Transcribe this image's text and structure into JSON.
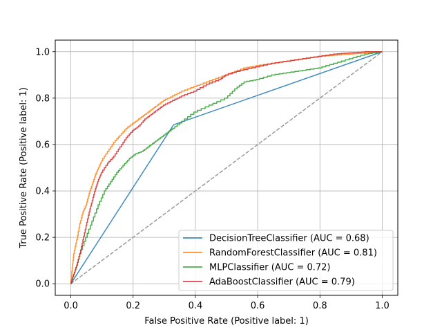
{
  "chart_data": {
    "type": "line",
    "title": "",
    "xlabel": "False Positive Rate (Positive label: 1)",
    "ylabel": "True Positive Rate (Positive label: 1)",
    "xlim": [
      -0.05,
      1.05
    ],
    "ylim": [
      -0.05,
      1.05
    ],
    "xticks": [
      0.0,
      0.2,
      0.4,
      0.6,
      0.8,
      1.0
    ],
    "yticks": [
      0.0,
      0.2,
      0.4,
      0.6,
      0.8,
      1.0
    ],
    "xtick_labels": [
      "0.0",
      "0.2",
      "0.4",
      "0.6",
      "0.8",
      "1.0"
    ],
    "ytick_labels": [
      "0.0",
      "0.2",
      "0.4",
      "0.6",
      "0.8",
      "1.0"
    ],
    "grid": true,
    "legend_position": "lower-right",
    "series": [
      {
        "name": "DecisionTreeClassifier (AUC = 0.68)",
        "color": "#1f77b4",
        "x": [
          0.0,
          0.33,
          1.0
        ],
        "y": [
          0.0,
          0.685,
          1.0
        ]
      },
      {
        "name": "RandomForestClassifier (AUC = 0.81)",
        "color": "#ff7f0e",
        "x": [
          0.0,
          0.005,
          0.01,
          0.02,
          0.03,
          0.04,
          0.05,
          0.06,
          0.07,
          0.08,
          0.09,
          0.1,
          0.12,
          0.14,
          0.16,
          0.18,
          0.2,
          0.22,
          0.24,
          0.26,
          0.28,
          0.3,
          0.33,
          0.36,
          0.4,
          0.44,
          0.48,
          0.52,
          0.56,
          0.6,
          0.65,
          0.7,
          0.75,
          0.8,
          0.85,
          0.9,
          0.95,
          1.0
        ],
        "y": [
          0.0,
          0.07,
          0.13,
          0.19,
          0.26,
          0.31,
          0.34,
          0.39,
          0.43,
          0.47,
          0.5,
          0.53,
          0.57,
          0.61,
          0.64,
          0.67,
          0.69,
          0.71,
          0.73,
          0.75,
          0.77,
          0.79,
          0.81,
          0.83,
          0.85,
          0.87,
          0.89,
          0.91,
          0.93,
          0.94,
          0.95,
          0.96,
          0.97,
          0.98,
          0.985,
          0.99,
          0.995,
          1.0
        ]
      },
      {
        "name": "MLPClassifier (AUC = 0.72)",
        "color": "#2ca02c",
        "x": [
          0.0,
          0.01,
          0.02,
          0.03,
          0.05,
          0.07,
          0.09,
          0.11,
          0.13,
          0.15,
          0.17,
          0.19,
          0.21,
          0.23,
          0.25,
          0.27,
          0.29,
          0.31,
          0.33,
          0.36,
          0.4,
          0.45,
          0.5,
          0.53,
          0.56,
          0.6,
          0.65,
          0.7,
          0.75,
          0.8,
          0.85,
          0.9,
          0.95,
          1.0
        ],
        "y": [
          0.0,
          0.04,
          0.08,
          0.13,
          0.2,
          0.27,
          0.34,
          0.4,
          0.44,
          0.48,
          0.51,
          0.54,
          0.56,
          0.57,
          0.59,
          0.61,
          0.63,
          0.65,
          0.67,
          0.7,
          0.74,
          0.77,
          0.8,
          0.84,
          0.87,
          0.88,
          0.9,
          0.91,
          0.92,
          0.93,
          0.95,
          0.97,
          0.99,
          1.0
        ]
      },
      {
        "name": "AdaBoostClassifier (AUC = 0.79)",
        "color": "#d62728",
        "x": [
          0.0,
          0.01,
          0.02,
          0.03,
          0.04,
          0.05,
          0.06,
          0.07,
          0.08,
          0.09,
          0.1,
          0.12,
          0.14,
          0.16,
          0.18,
          0.2,
          0.22,
          0.24,
          0.26,
          0.28,
          0.3,
          0.33,
          0.36,
          0.4,
          0.44,
          0.48,
          0.5,
          0.55,
          0.6,
          0.65,
          0.7,
          0.75,
          0.8,
          0.85,
          0.9,
          0.95,
          1.0
        ],
        "y": [
          0.0,
          0.04,
          0.08,
          0.13,
          0.19,
          0.25,
          0.31,
          0.36,
          0.41,
          0.45,
          0.48,
          0.52,
          0.55,
          0.59,
          0.63,
          0.66,
          0.68,
          0.71,
          0.73,
          0.75,
          0.77,
          0.79,
          0.81,
          0.83,
          0.86,
          0.88,
          0.9,
          0.92,
          0.935,
          0.95,
          0.96,
          0.97,
          0.98,
          0.99,
          0.995,
          1.0,
          1.0
        ]
      },
      {
        "name": "",
        "color": "#999999",
        "x": [
          0.0,
          1.0
        ],
        "y": [
          0.0,
          1.0
        ]
      }
    ]
  }
}
